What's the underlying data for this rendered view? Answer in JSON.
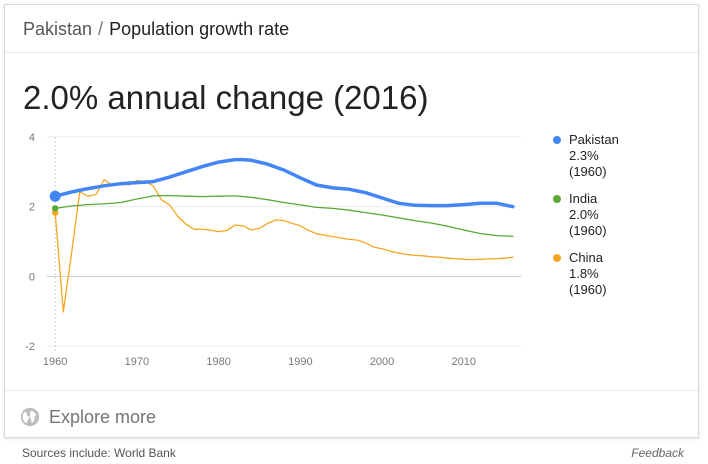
{
  "breadcrumb": {
    "country": "Pakistan",
    "separator": "/",
    "topic": "Population growth rate"
  },
  "headline": "2.0% annual change (2016)",
  "explore_label": "Explore more",
  "sources": "Sources include: World Bank",
  "feedback": "Feedback",
  "legend": [
    {
      "name": "Pakistan",
      "value": "2.3%",
      "year": "(1960)",
      "color": "#4285f4"
    },
    {
      "name": "India",
      "value": "2.0%",
      "year": "(1960)",
      "color": "#5ba83a"
    },
    {
      "name": "China",
      "value": "1.8%",
      "year": "(1960)",
      "color": "#f5a623"
    }
  ],
  "chart_data": {
    "type": "line",
    "xlim": [
      1959,
      2017
    ],
    "ylim": [
      -2,
      4
    ],
    "xticks": [
      1960,
      1970,
      1980,
      1990,
      2000,
      2010
    ],
    "yticks": [
      4,
      2,
      0,
      -2
    ],
    "grid": true,
    "legend_position": "right",
    "series": [
      {
        "name": "Pakistan",
        "color": "#4285f4",
        "x": [
          1960,
          1962,
          1964,
          1966,
          1968,
          1970,
          1972,
          1974,
          1976,
          1978,
          1980,
          1982,
          1983,
          1984,
          1986,
          1988,
          1990,
          1992,
          1994,
          1996,
          1998,
          2000,
          2002,
          2004,
          2006,
          2008,
          2010,
          2012,
          2014,
          2016
        ],
        "values": [
          2.3,
          2.42,
          2.52,
          2.6,
          2.66,
          2.69,
          2.72,
          2.85,
          3.0,
          3.15,
          3.28,
          3.35,
          3.35,
          3.33,
          3.22,
          3.05,
          2.83,
          2.62,
          2.54,
          2.5,
          2.4,
          2.25,
          2.1,
          2.04,
          2.03,
          2.03,
          2.06,
          2.1,
          2.1,
          2.0
        ]
      },
      {
        "name": "India",
        "color": "#5ba83a",
        "x": [
          1960,
          1962,
          1964,
          1966,
          1968,
          1970,
          1972,
          1974,
          1976,
          1978,
          1980,
          1982,
          1984,
          1986,
          1988,
          1990,
          1992,
          1994,
          1996,
          1998,
          2000,
          2002,
          2004,
          2006,
          2008,
          2010,
          2012,
          2014,
          2016
        ],
        "values": [
          1.95,
          2.02,
          2.06,
          2.08,
          2.12,
          2.22,
          2.31,
          2.32,
          2.3,
          2.29,
          2.3,
          2.31,
          2.27,
          2.2,
          2.12,
          2.05,
          1.98,
          1.95,
          1.9,
          1.83,
          1.76,
          1.68,
          1.6,
          1.53,
          1.44,
          1.33,
          1.23,
          1.17,
          1.15
        ]
      },
      {
        "name": "China",
        "color": "#f5a623",
        "x": [
          1960,
          1961,
          1962,
          1963,
          1964,
          1965,
          1966,
          1967,
          1968,
          1969,
          1970,
          1971,
          1972,
          1973,
          1974,
          1975,
          1976,
          1977,
          1978,
          1979,
          1980,
          1981,
          1982,
          1983,
          1984,
          1985,
          1986,
          1987,
          1988,
          1989,
          1990,
          1991,
          1992,
          1993,
          1994,
          1995,
          1996,
          1997,
          1998,
          1999,
          2000,
          2001,
          2002,
          2003,
          2004,
          2005,
          2006,
          2007,
          2008,
          2009,
          2010,
          2011,
          2012,
          2013,
          2014,
          2015,
          2016
        ],
        "values": [
          1.83,
          -1.02,
          0.65,
          2.43,
          2.3,
          2.35,
          2.78,
          2.6,
          2.7,
          2.62,
          2.75,
          2.72,
          2.6,
          2.2,
          2.05,
          1.72,
          1.5,
          1.35,
          1.35,
          1.33,
          1.28,
          1.32,
          1.47,
          1.45,
          1.33,
          1.38,
          1.52,
          1.62,
          1.6,
          1.52,
          1.45,
          1.32,
          1.22,
          1.18,
          1.14,
          1.1,
          1.06,
          1.04,
          0.96,
          0.84,
          0.79,
          0.72,
          0.67,
          0.63,
          0.6,
          0.59,
          0.56,
          0.55,
          0.52,
          0.51,
          0.49,
          0.48,
          0.49,
          0.5,
          0.51,
          0.52,
          0.55
        ]
      }
    ]
  }
}
